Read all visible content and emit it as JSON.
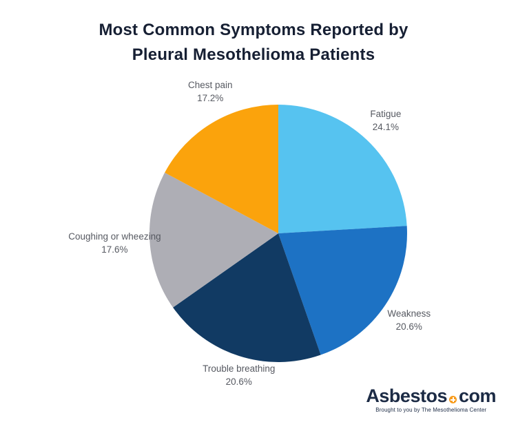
{
  "title_lines": [
    "Most Common Symptoms Reported by",
    "Pleural Mesothelioma Patients"
  ],
  "chart_data": {
    "type": "pie",
    "title": "Most Common Symptoms Reported by Pleural Mesothelioma Patients",
    "direction": "clockwise",
    "start_angle": "12 o'clock",
    "legend_position": "none",
    "label_style": "outside, name and percent",
    "slices": [
      {
        "label": "Fatigue",
        "value": 24.1,
        "display": "24.1%",
        "color": "#56c3f0"
      },
      {
        "label": "Weakness",
        "value": 20.6,
        "display": "20.6%",
        "color": "#1d72c4"
      },
      {
        "label": "Trouble breathing",
        "value": 20.6,
        "display": "20.6%",
        "color": "#113a63"
      },
      {
        "label": "Coughing or wheezing",
        "value": 17.6,
        "display": "17.6%",
        "color": "#aeaeb5"
      },
      {
        "label": "Chest pain",
        "value": 17.2,
        "display": "17.2%",
        "color": "#fba30c"
      }
    ]
  },
  "branding": {
    "logo_text_main": "Asbestos",
    "logo_text_suffix": "com",
    "logo_dot_icon": "plus-circle-icon",
    "logo_dot_color": "#f89c1c",
    "tagline": "Brought to you by The Mesothelioma Center"
  },
  "colors": {
    "title_text": "#161f33",
    "label_text": "#565961",
    "logo_text": "#1c2b45",
    "background": "#ffffff"
  }
}
